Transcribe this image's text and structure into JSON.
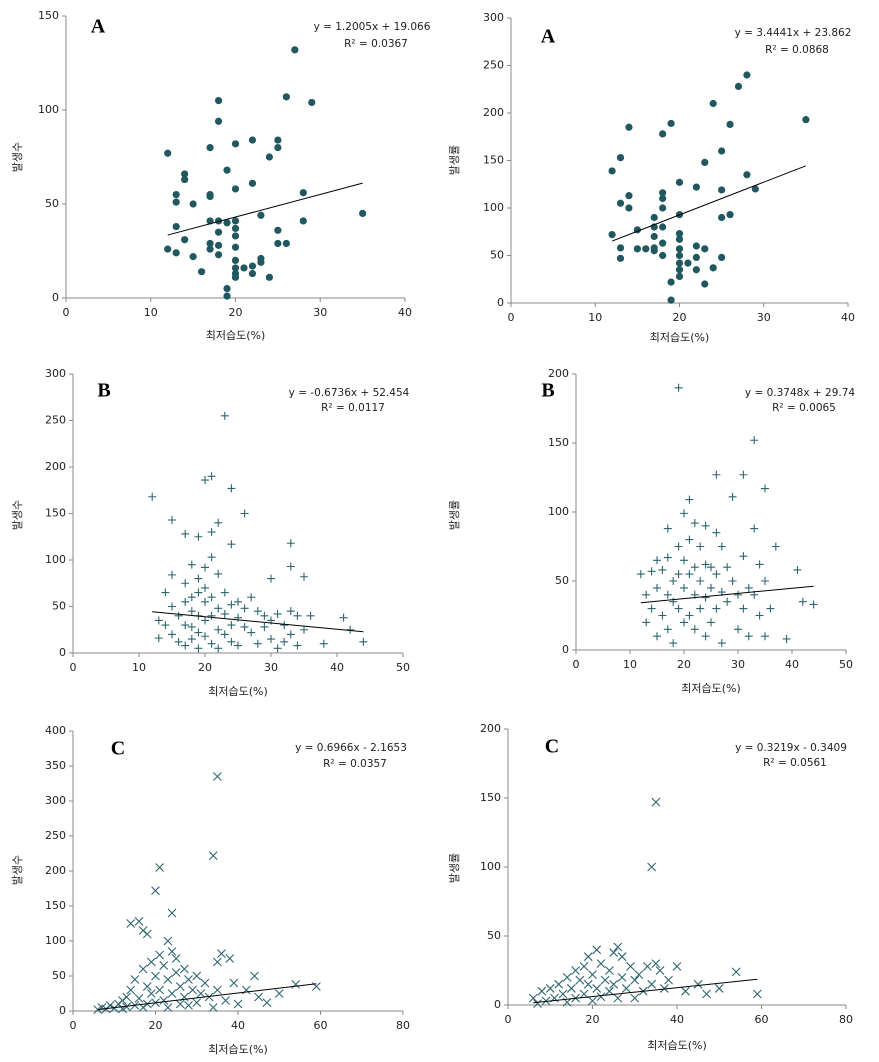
{
  "chart_data": [
    {
      "type": "scatter",
      "label": "A",
      "marker": "circle",
      "color": "#21585f",
      "trendline": {
        "label": "y = 1.2005x + 19.066",
        "slope": 1.2005,
        "intercept": 19.066
      },
      "r_squared": "R² = 0.0367",
      "xlabel": "최저습도(%)",
      "ylabel": "발생수",
      "xlim": [
        0,
        40
      ],
      "xticks": [
        0,
        10,
        20,
        30,
        40
      ],
      "ylim": [
        0,
        150
      ],
      "yticks": [
        0,
        50,
        100,
        150
      ],
      "x": [
        12,
        12,
        13,
        13,
        13,
        13,
        14,
        14,
        14,
        15,
        15,
        16,
        17,
        17,
        17,
        17,
        17,
        17,
        18,
        18,
        18,
        18,
        18,
        18,
        19,
        19,
        19,
        19,
        20,
        20,
        20,
        20,
        20,
        20,
        20,
        20,
        20,
        20,
        21,
        22,
        22,
        22,
        22,
        23,
        23,
        23,
        24,
        24,
        25,
        25,
        25,
        25,
        26,
        26,
        27,
        28,
        28,
        29,
        35
      ],
      "values": [
        77,
        26,
        55,
        51,
        24,
        38,
        66,
        63,
        31,
        50,
        22,
        14,
        80,
        55,
        54,
        41,
        29,
        26,
        105,
        94,
        41,
        35,
        28,
        23,
        68,
        40,
        5,
        1,
        82,
        58,
        41,
        37,
        33,
        27,
        20,
        16,
        13,
        11,
        16,
        84,
        61,
        17,
        13,
        44,
        21,
        19,
        75,
        11,
        84,
        80,
        29,
        36,
        107,
        29,
        132,
        56,
        41,
        104,
        45
      ]
    },
    {
      "type": "scatter",
      "label": "A",
      "marker": "circle",
      "color": "#21585f",
      "trendline": {
        "label": "y = 3.4441x + 23.862",
        "slope": 3.4441,
        "intercept": 23.862
      },
      "r_squared": "R² = 0.0868",
      "xlabel": "최저습도(%)",
      "ylabel": "발생률",
      "xlim": [
        0,
        40
      ],
      "xticks": [
        0,
        10,
        20,
        30,
        40
      ],
      "ylim": [
        0,
        300
      ],
      "yticks": [
        0,
        50,
        100,
        150,
        200,
        250,
        300
      ],
      "x": [
        12,
        12,
        13,
        13,
        13,
        13,
        14,
        14,
        14,
        15,
        15,
        16,
        17,
        17,
        17,
        17,
        17,
        18,
        18,
        18,
        18,
        18,
        18,
        18,
        19,
        19,
        19,
        20,
        20,
        20,
        20,
        20,
        20,
        20,
        20,
        20,
        21,
        22,
        22,
        22,
        22,
        23,
        23,
        23,
        24,
        24,
        25,
        25,
        25,
        25,
        26,
        26,
        27,
        28,
        28,
        29,
        35
      ],
      "values": [
        139,
        72,
        153,
        105,
        58,
        47,
        185,
        113,
        100,
        77,
        57,
        57,
        58,
        90,
        80,
        70,
        55,
        178,
        116,
        110,
        100,
        80,
        63,
        50,
        189,
        22,
        3,
        127,
        93,
        73,
        67,
        57,
        50,
        42,
        35,
        28,
        42,
        122,
        60,
        48,
        35,
        148,
        57,
        20,
        210,
        37,
        160,
        119,
        90,
        48,
        188,
        93,
        228,
        240,
        135,
        120,
        193
      ]
    },
    {
      "type": "scatter",
      "label": "B",
      "marker": "plus",
      "color": "#2e6670",
      "trendline": {
        "label": "y = -0.6736x + 52.454",
        "slope": -0.6736,
        "intercept": 52.454
      },
      "r_squared": "R² = 0.0117",
      "xlabel": "최저습도(%)",
      "ylabel": "발생수",
      "xlim": [
        0,
        50
      ],
      "xticks": [
        0,
        10,
        20,
        30,
        40,
        50
      ],
      "ylim": [
        0,
        300
      ],
      "yticks": [
        0,
        50,
        100,
        150,
        200,
        250,
        300
      ],
      "x": [
        12,
        13,
        13,
        14,
        14,
        15,
        15,
        15,
        15,
        16,
        16,
        17,
        17,
        17,
        17,
        17,
        18,
        18,
        18,
        18,
        18,
        19,
        19,
        19,
        19,
        19,
        19,
        20,
        20,
        20,
        20,
        20,
        20,
        21,
        21,
        21,
        21,
        21,
        21,
        22,
        22,
        22,
        22,
        22,
        23,
        23,
        23,
        23,
        24,
        24,
        24,
        24,
        24,
        25,
        25,
        25,
        26,
        26,
        26,
        27,
        27,
        28,
        28,
        29,
        29,
        30,
        30,
        30,
        31,
        31,
        32,
        32,
        33,
        33,
        33,
        33,
        34,
        34,
        35,
        35,
        36,
        38,
        41,
        42,
        44
      ],
      "values": [
        168,
        35,
        16,
        30,
        65,
        143,
        84,
        50,
        20,
        40,
        12,
        128,
        75,
        55,
        30,
        8,
        95,
        60,
        45,
        28,
        15,
        125,
        80,
        65,
        40,
        22,
        5,
        186,
        92,
        70,
        55,
        35,
        18,
        190,
        103,
        130,
        60,
        40,
        10,
        140,
        85,
        48,
        25,
        5,
        255,
        65,
        42,
        20,
        177,
        117,
        52,
        30,
        12,
        55,
        38,
        8,
        150,
        48,
        28,
        60,
        22,
        45,
        10,
        40,
        28,
        80,
        35,
        15,
        42,
        5,
        30,
        12,
        118,
        93,
        45,
        20,
        40,
        8,
        82,
        25,
        40,
        10,
        38,
        25,
        12
      ]
    },
    {
      "type": "scatter",
      "label": "B",
      "marker": "plus",
      "color": "#2e6670",
      "trendline": {
        "label": "y = 0.3748x + 29.74",
        "slope": 0.3748,
        "intercept": 29.74
      },
      "r_squared": "R² = 0.0065",
      "xlabel": "최저습도(%)",
      "ylabel": "발생률",
      "xlim": [
        0,
        50
      ],
      "xticks": [
        0,
        10,
        20,
        30,
        40,
        50
      ],
      "ylim": [
        0,
        200
      ],
      "yticks": [
        0,
        50,
        100,
        150,
        200
      ],
      "x": [
        12,
        13,
        13,
        14,
        14,
        15,
        15,
        15,
        16,
        16,
        17,
        17,
        17,
        17,
        18,
        18,
        18,
        19,
        19,
        19,
        19,
        20,
        20,
        20,
        20,
        21,
        21,
        21,
        21,
        22,
        22,
        22,
        22,
        23,
        23,
        23,
        24,
        24,
        24,
        24,
        25,
        25,
        25,
        26,
        26,
        26,
        26,
        27,
        27,
        27,
        28,
        28,
        29,
        29,
        30,
        30,
        31,
        31,
        31,
        32,
        32,
        33,
        33,
        33,
        34,
        34,
        35,
        35,
        35,
        36,
        37,
        39,
        41,
        42,
        44
      ],
      "values": [
        55,
        40,
        20,
        57,
        30,
        65,
        45,
        10,
        58,
        25,
        88,
        67,
        40,
        15,
        50,
        35,
        5,
        190,
        75,
        55,
        30,
        99,
        65,
        45,
        20,
        109,
        80,
        55,
        25,
        92,
        60,
        40,
        15,
        75,
        50,
        30,
        90,
        62,
        38,
        10,
        60,
        45,
        20,
        127,
        85,
        55,
        30,
        75,
        42,
        5,
        60,
        35,
        111,
        50,
        40,
        15,
        127,
        68,
        30,
        45,
        10,
        152,
        88,
        40,
        62,
        25,
        117,
        50,
        10,
        30,
        75,
        8,
        58,
        35,
        33
      ]
    },
    {
      "type": "scatter",
      "label": "C",
      "marker": "cross",
      "color": "#2e6670",
      "trendline": {
        "label": "y = 0.6966x - 2.1653",
        "slope": 0.6966,
        "intercept": -2.1653
      },
      "r_squared": "R² = 0.0357",
      "xlabel": "최저습도(%)",
      "ylabel": "발생수",
      "xlim": [
        0,
        80
      ],
      "xticks": [
        0,
        20,
        40,
        60,
        80
      ],
      "ylim": [
        0,
        400
      ],
      "yticks": [
        0,
        50,
        100,
        150,
        200,
        250,
        300,
        350,
        400
      ],
      "x": [
        6,
        7,
        8,
        9,
        10,
        11,
        12,
        12,
        13,
        13,
        14,
        14,
        15,
        15,
        16,
        16,
        17,
        17,
        17,
        18,
        18,
        18,
        19,
        19,
        20,
        20,
        20,
        21,
        21,
        21,
        22,
        22,
        23,
        23,
        23,
        24,
        24,
        24,
        25,
        25,
        26,
        26,
        27,
        27,
        28,
        28,
        29,
        30,
        30,
        31,
        32,
        33,
        34,
        34,
        35,
        35,
        35,
        36,
        37,
        38,
        39,
        40,
        42,
        44,
        45,
        47,
        50,
        54,
        59
      ],
      "values": [
        2,
        5,
        3,
        8,
        4,
        10,
        15,
        3,
        20,
        6,
        30,
        125,
        8,
        45,
        128,
        18,
        115,
        60,
        5,
        110,
        35,
        10,
        70,
        25,
        172,
        50,
        12,
        205,
        80,
        30,
        65,
        15,
        100,
        45,
        5,
        140,
        85,
        25,
        75,
        55,
        35,
        10,
        60,
        20,
        45,
        8,
        30,
        50,
        12,
        25,
        40,
        20,
        222,
        5,
        335,
        70,
        30,
        82,
        15,
        75,
        40,
        10,
        30,
        50,
        20,
        12,
        25,
        38,
        35
      ]
    },
    {
      "type": "scatter",
      "label": "C",
      "marker": "cross",
      "color": "#2e6670",
      "trendline": {
        "label": "y = 0.3219x - 0.3409",
        "slope": 0.3219,
        "intercept": -0.3409
      },
      "r_squared": "R² = 0.0561",
      "xlabel": "최저습도(%)",
      "ylabel": "발생률",
      "xlim": [
        0,
        80
      ],
      "xticks": [
        0,
        20,
        40,
        60,
        80
      ],
      "ylim": [
        0,
        200
      ],
      "yticks": [
        0,
        50,
        100,
        150,
        200
      ],
      "x": [
        6,
        7,
        8,
        9,
        10,
        11,
        12,
        13,
        14,
        14,
        15,
        16,
        16,
        17,
        18,
        18,
        19,
        19,
        20,
        20,
        21,
        21,
        22,
        22,
        23,
        24,
        24,
        25,
        25,
        26,
        26,
        27,
        27,
        28,
        29,
        30,
        30,
        31,
        32,
        33,
        34,
        34,
        35,
        35,
        36,
        37,
        38,
        40,
        42,
        45,
        47,
        50,
        54,
        59
      ],
      "values": [
        5,
        1,
        10,
        3,
        12,
        5,
        15,
        8,
        20,
        2,
        12,
        25,
        5,
        18,
        28,
        8,
        35,
        15,
        22,
        3,
        40,
        12,
        30,
        6,
        18,
        25,
        10,
        38,
        15,
        42,
        5,
        35,
        20,
        12,
        28,
        18,
        5,
        22,
        10,
        28,
        100,
        15,
        147,
        30,
        25,
        12,
        18,
        28,
        10,
        15,
        8,
        12,
        24,
        8
      ]
    }
  ]
}
